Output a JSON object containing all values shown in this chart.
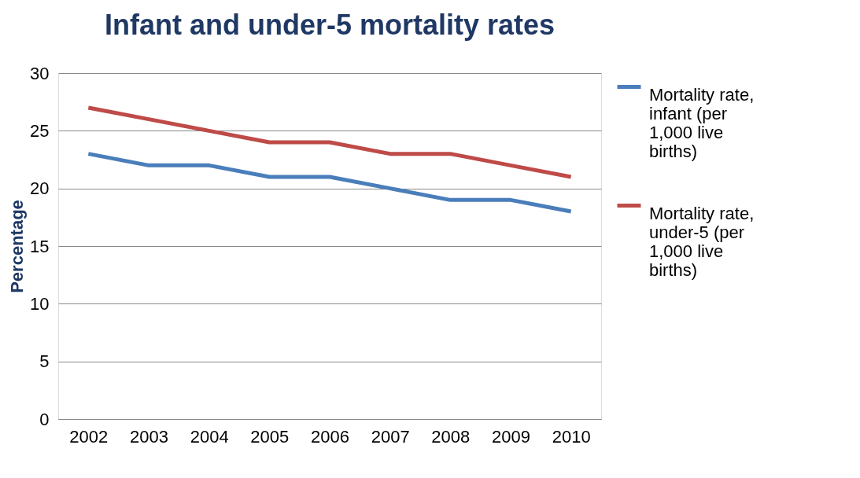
{
  "chart_data": {
    "type": "line",
    "title": "Infant and under-5 mortality rates",
    "ylabel": "Percentage",
    "categories": [
      "2002",
      "2003",
      "2004",
      "2005",
      "2006",
      "2007",
      "2008",
      "2009",
      "2010"
    ],
    "series": [
      {
        "name": "Mortality rate, infant (per 1,000 live births)",
        "color": "#4a7ebb",
        "values": [
          23,
          22,
          22,
          21,
          21,
          20,
          19,
          19,
          18
        ]
      },
      {
        "name": "Mortality rate, under-5 (per 1,000 live births)",
        "color": "#be4b48",
        "values": [
          27,
          26,
          25,
          24,
          24,
          23,
          23,
          22,
          21
        ]
      }
    ],
    "ylim": [
      0,
      30
    ],
    "yticks": [
      0,
      5,
      10,
      15,
      20,
      25,
      30
    ],
    "grid": "y",
    "legend": "right",
    "marker": "none",
    "line_style": "solid"
  }
}
